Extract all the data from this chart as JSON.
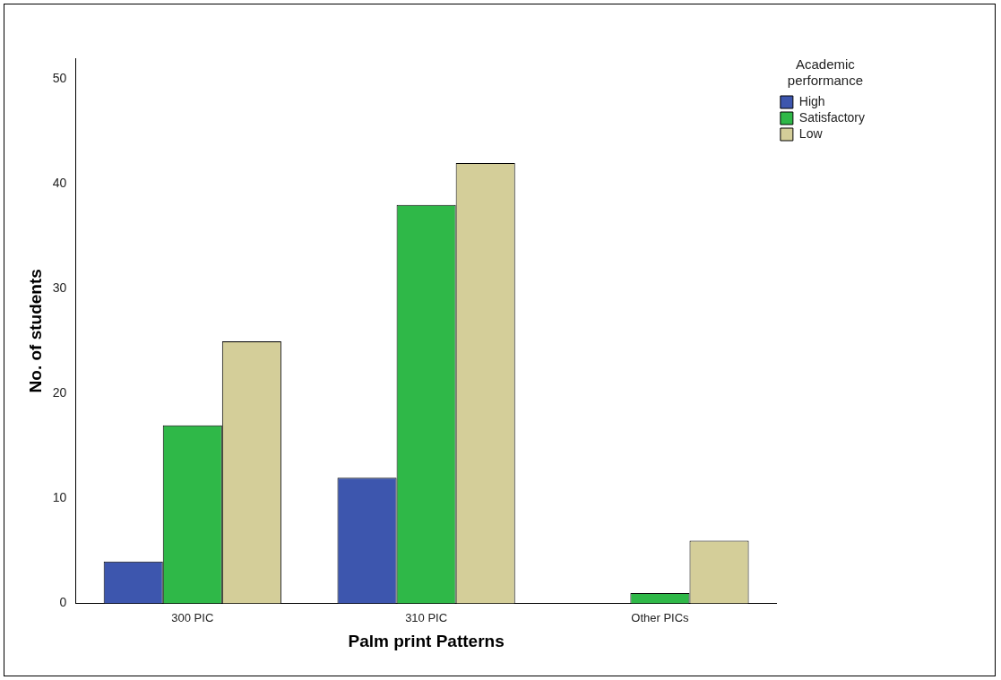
{
  "chart_data": {
    "type": "bar",
    "xlabel": "Palm print Patterns",
    "ylabel": "No. of students",
    "legend_title": "Academic performance",
    "categories": [
      "300 PIC",
      "310 PIC",
      "Other PICs"
    ],
    "series": [
      {
        "name": "High",
        "color": "#3d56ae",
        "values": [
          4,
          12,
          0
        ]
      },
      {
        "name": "Satisfactory",
        "color": "#2fb848",
        "values": [
          17,
          38,
          1
        ]
      },
      {
        "name": "Low",
        "color": "#d4ce99",
        "values": [
          25,
          42,
          6
        ]
      }
    ],
    "ylim": [
      0,
      52
    ],
    "yticks": [
      0,
      10,
      20,
      30,
      40,
      50
    ],
    "legend": "top right"
  }
}
